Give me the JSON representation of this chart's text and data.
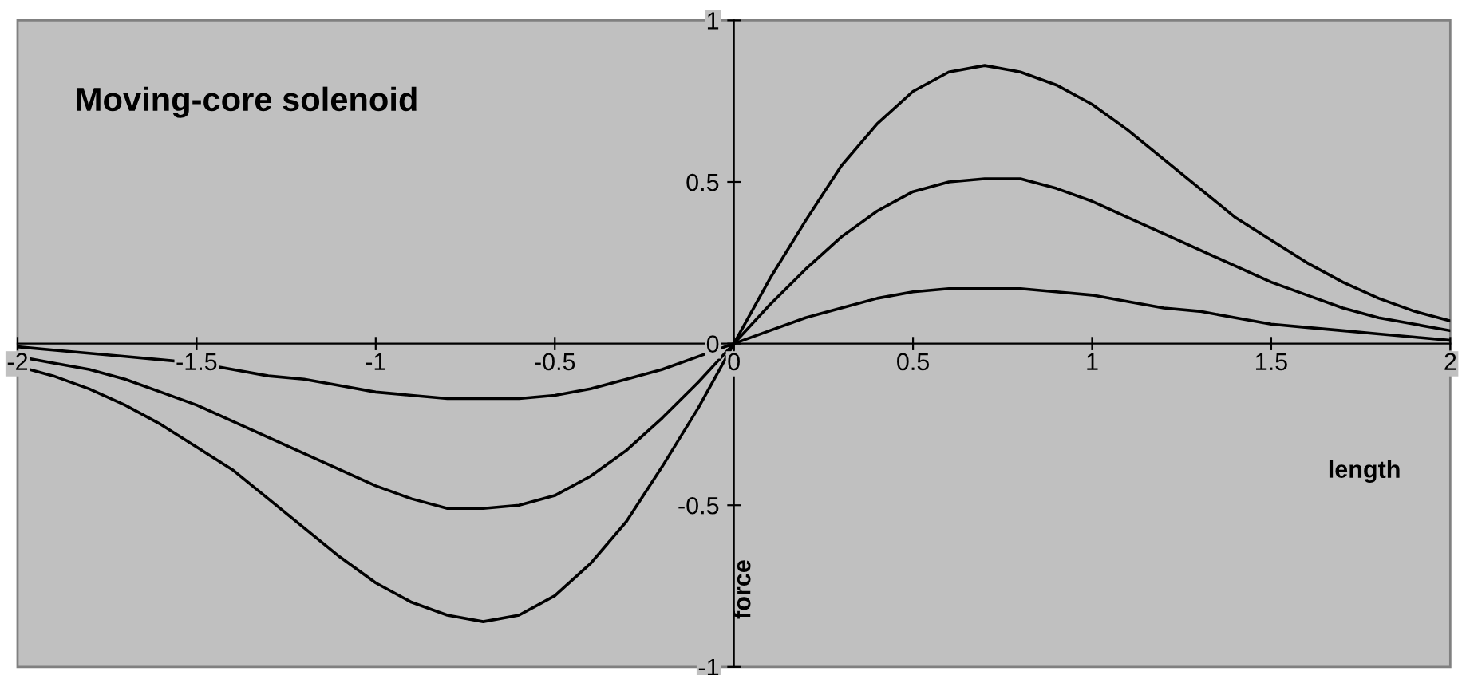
{
  "chart_data": {
    "type": "line",
    "title": "Moving-core solenoid",
    "xlabel": "length",
    "ylabel": "force",
    "x": [
      -2,
      -1.9,
      -1.8,
      -1.7,
      -1.6,
      -1.5,
      -1.4,
      -1.3,
      -1.2,
      -1.1,
      -1,
      -0.9,
      -0.8,
      -0.7,
      -0.6,
      -0.5,
      -0.4,
      -0.3,
      -0.2,
      -0.1,
      0,
      0.1,
      0.2,
      0.3,
      0.4,
      0.5,
      0.6,
      0.7,
      0.8,
      0.9,
      1,
      1.1,
      1.2,
      1.3,
      1.4,
      1.5,
      1.6,
      1.7,
      1.8,
      1.9,
      2
    ],
    "series": [
      {
        "color": "#000000",
        "values": [
          -0.07,
          -0.1,
          -0.14,
          -0.19,
          -0.25,
          -0.32,
          -0.39,
          -0.48,
          -0.57,
          -0.66,
          -0.74,
          -0.8,
          -0.84,
          -0.86,
          -0.84,
          -0.78,
          -0.68,
          -0.55,
          -0.38,
          -0.2,
          0,
          0.2,
          0.38,
          0.55,
          0.68,
          0.78,
          0.84,
          0.86,
          0.84,
          0.8,
          0.74,
          0.66,
          0.57,
          0.48,
          0.39,
          0.32,
          0.25,
          0.19,
          0.14,
          0.1,
          0.07
        ]
      },
      {
        "color": "#000000",
        "values": [
          -0.04,
          -0.06,
          -0.08,
          -0.11,
          -0.15,
          -0.19,
          -0.24,
          -0.29,
          -0.34,
          -0.39,
          -0.44,
          -0.48,
          -0.51,
          -0.51,
          -0.5,
          -0.47,
          -0.41,
          -0.33,
          -0.23,
          -0.12,
          0,
          0.12,
          0.23,
          0.33,
          0.41,
          0.47,
          0.5,
          0.51,
          0.51,
          0.48,
          0.44,
          0.39,
          0.34,
          0.29,
          0.24,
          0.19,
          0.15,
          0.11,
          0.08,
          0.06,
          0.04
        ]
      },
      {
        "color": "#000000",
        "values": [
          -0.01,
          -0.02,
          -0.03,
          -0.04,
          -0.05,
          -0.06,
          -0.08,
          -0.1,
          -0.11,
          -0.13,
          -0.15,
          -0.16,
          -0.17,
          -0.17,
          -0.17,
          -0.16,
          -0.14,
          -0.11,
          -0.08,
          -0.04,
          0,
          0.04,
          0.08,
          0.11,
          0.14,
          0.16,
          0.17,
          0.17,
          0.17,
          0.16,
          0.15,
          0.13,
          0.11,
          0.1,
          0.08,
          0.06,
          0.05,
          0.04,
          0.03,
          0.02,
          0.01
        ]
      }
    ],
    "xlim": [
      -2,
      2
    ],
    "ylim": [
      -1,
      1
    ],
    "xticks": [
      -2,
      -1.5,
      -1,
      -0.5,
      0,
      0.5,
      1,
      1.5,
      2
    ],
    "yticks": [
      -1,
      -0.5,
      0,
      0.5,
      1
    ],
    "grid": false,
    "legend": false,
    "marker": "none",
    "line_style": "solid"
  }
}
